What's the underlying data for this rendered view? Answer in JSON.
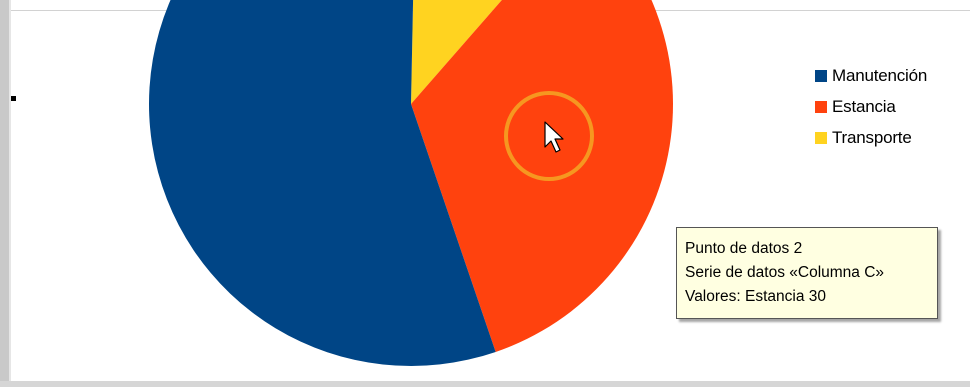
{
  "chart_data": {
    "type": "pie",
    "slices": [
      {
        "label": "Manutención",
        "value": 50,
        "color": "#004586"
      },
      {
        "label": "Estancia",
        "value": 30,
        "color": "#ff420e"
      },
      {
        "label": "Transporte",
        "value": 10,
        "color": "#ffd320"
      }
    ],
    "legend": [
      {
        "label": "Manutención",
        "color": "#004586"
      },
      {
        "label": "Estancia",
        "color": "#ff420e"
      },
      {
        "label": "Transporte",
        "color": "#ffd320"
      }
    ],
    "legend_position": "right"
  },
  "tooltip": {
    "line1": "Punto de datos 2",
    "line2": "Serie de datos «Columna C»",
    "line3": "Valores: Estancia 30"
  },
  "cursor": {
    "icon": "pointer-arrow-icon",
    "highlight_color": "#f5a623"
  }
}
